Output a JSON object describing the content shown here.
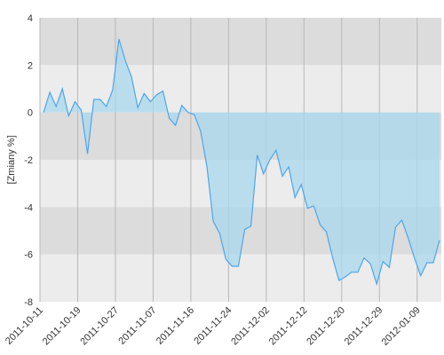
{
  "chart_data": {
    "type": "area",
    "y_label": "[Zmiany %]",
    "categories": [
      "2011-10-11",
      null,
      null,
      null,
      null,
      null,
      "2011-10-19",
      null,
      null,
      null,
      null,
      null,
      "2011-10-27",
      null,
      null,
      null,
      null,
      null,
      "2011-11-07",
      null,
      null,
      null,
      null,
      null,
      "2011-11-16",
      null,
      null,
      null,
      null,
      null,
      "2011-11-24",
      null,
      null,
      null,
      null,
      null,
      "2011-12-02",
      null,
      null,
      null,
      null,
      null,
      "2011-12-12",
      null,
      null,
      null,
      null,
      null,
      "2011-12-20",
      null,
      null,
      null,
      null,
      null,
      "2011-12-29",
      null,
      null,
      null,
      null,
      null,
      "2012-01-09",
      null,
      null,
      null
    ],
    "series": [
      {
        "color": "#4da6e8",
        "fill": "#a9d8ef",
        "values": [
          0,
          0.85,
          0.25,
          1.0,
          -0.15,
          0.45,
          0.1,
          -1.75,
          0.55,
          0.55,
          0.25,
          0.95,
          3.1,
          2.2,
          1.5,
          0.2,
          0.8,
          0.45,
          0.75,
          0.9,
          -0.25,
          -0.55,
          0.3,
          0,
          -0.1,
          -0.8,
          -2.3,
          -4.6,
          -5.1,
          -6.2,
          -6.5,
          -6.5,
          -4.95,
          -4.8,
          -1.8,
          -2.6,
          -2.0,
          -1.6,
          -2.7,
          -2.3,
          -3.6,
          -3.05,
          -4.05,
          -3.95,
          -4.75,
          -5.05,
          -6.15,
          -7.1,
          -6.95,
          -6.75,
          -6.75,
          -6.15,
          -6.4,
          -7.25,
          -6.3,
          -6.55,
          -4.85,
          -4.55,
          -5.3,
          -6.15,
          -6.9,
          -6.35,
          -6.35,
          -5.4
        ]
      }
    ],
    "ylim": [
      -8,
      4
    ],
    "yticks": [
      4,
      2,
      0,
      -2,
      -4,
      -6,
      -8
    ],
    "band_colors": [
      "#dcdcdc",
      "#ececec"
    ]
  }
}
